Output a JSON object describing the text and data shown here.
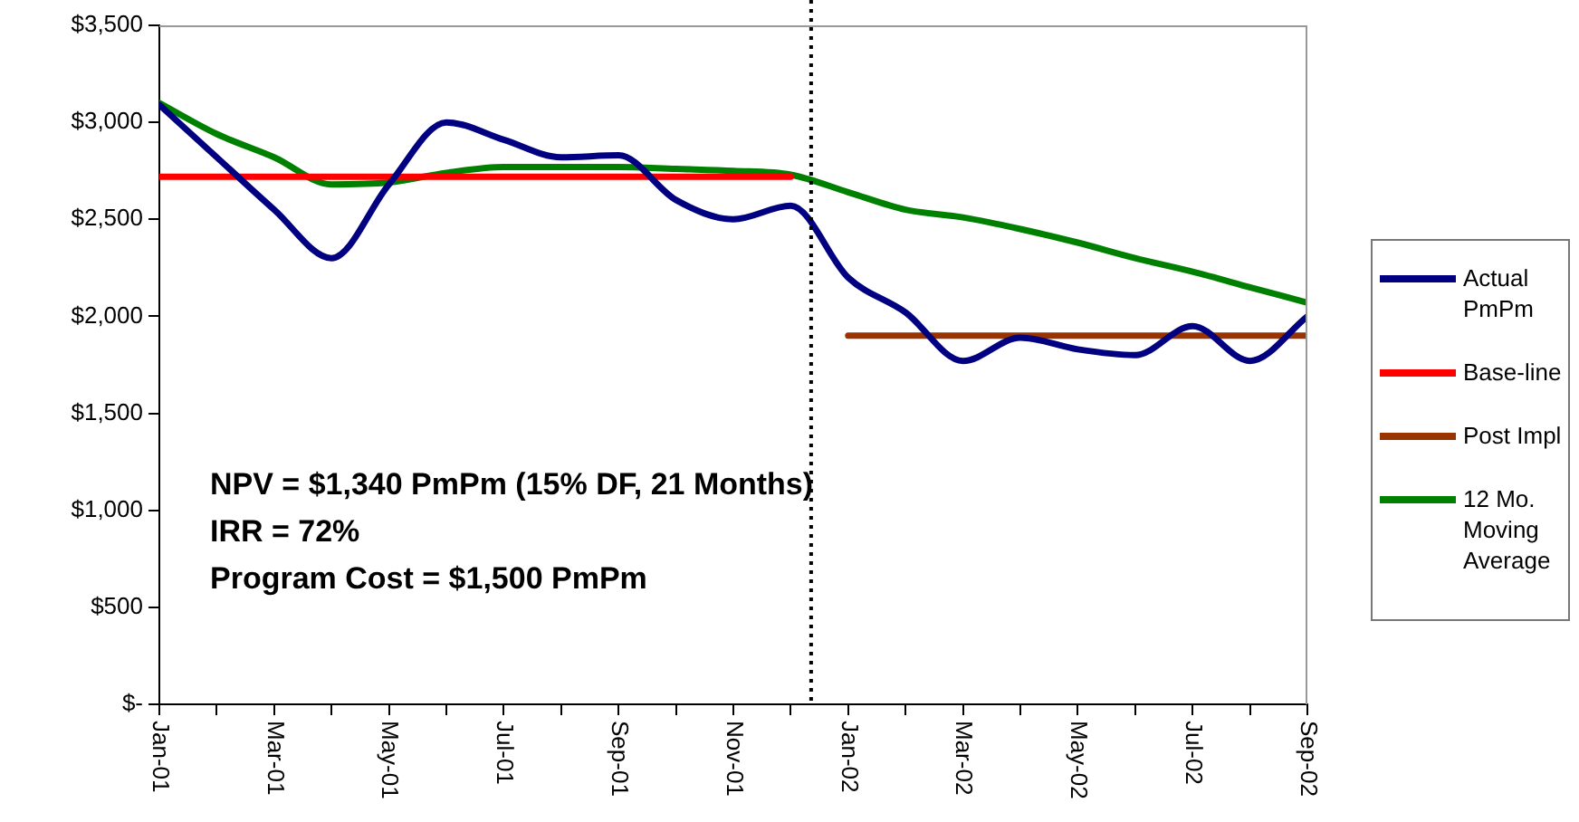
{
  "chart_data": {
    "type": "line",
    "x": [
      "2001-01",
      "2001-02",
      "2001-03",
      "2001-04",
      "2001-05",
      "2001-06",
      "2001-07",
      "2001-08",
      "2001-09",
      "2001-10",
      "2001-11",
      "2001-12",
      "2002-01",
      "2002-02",
      "2002-03",
      "2002-04",
      "2002-05",
      "2002-06",
      "2002-07",
      "2002-08",
      "2002-09"
    ],
    "series": [
      {
        "name": "Actual PmPm",
        "color": "#000080",
        "values": [
          3090,
          2820,
          2550,
          2300,
          2680,
          3000,
          2910,
          2820,
          2830,
          2600,
          2500,
          2570,
          2200,
          2020,
          1770,
          1890,
          1830,
          1800,
          1950,
          1770,
          2000
        ]
      },
      {
        "name": "Base-line",
        "color": "#ff0000",
        "values": [
          2720,
          2720,
          2720,
          2720,
          2720,
          2720,
          2720,
          2720,
          2720,
          2720,
          2720,
          2720,
          null,
          null,
          null,
          null,
          null,
          null,
          null,
          null,
          null
        ]
      },
      {
        "name": "Post Impl",
        "color": "#993300",
        "values": [
          null,
          null,
          null,
          null,
          null,
          null,
          null,
          null,
          null,
          null,
          null,
          null,
          1900,
          1900,
          1900,
          1900,
          1900,
          1900,
          1900,
          1900,
          1900
        ]
      },
      {
        "name": "12 Mo. Moving Average",
        "color": "#008000",
        "values": [
          3100,
          2940,
          2820,
          2680,
          2690,
          2740,
          2770,
          2770,
          2770,
          2760,
          2750,
          2730,
          2640,
          2550,
          2510,
          2450,
          2380,
          2300,
          2230,
          2150,
          2070
        ]
      }
    ],
    "xlim": [
      "2001-01",
      "2002-09"
    ],
    "xticks": [
      {
        "value": "2001-01",
        "label": "Jan-01"
      },
      {
        "value": "2001-02",
        "label": null
      },
      {
        "value": "2001-03",
        "label": "Mar-01"
      },
      {
        "value": "2001-04",
        "label": null
      },
      {
        "value": "2001-05",
        "label": "May-01"
      },
      {
        "value": "2001-06",
        "label": null
      },
      {
        "value": "2001-07",
        "label": "Jul-01"
      },
      {
        "value": "2001-08",
        "label": null
      },
      {
        "value": "2001-09",
        "label": "Sep-01"
      },
      {
        "value": "2001-10",
        "label": null
      },
      {
        "value": "2001-11",
        "label": "Nov-01"
      },
      {
        "value": "2001-12",
        "label": null
      },
      {
        "value": "2002-01",
        "label": "Jan-02"
      },
      {
        "value": "2002-02",
        "label": null
      },
      {
        "value": "2002-03",
        "label": "Mar-02"
      },
      {
        "value": "2002-04",
        "label": null
      },
      {
        "value": "2002-05",
        "label": "May-02"
      },
      {
        "value": "2002-06",
        "label": null
      },
      {
        "value": "2002-07",
        "label": "Jul-02"
      },
      {
        "value": "2002-08",
        "label": null
      },
      {
        "value": "2002-09",
        "label": "Sep-02"
      }
    ],
    "ylim": [
      0,
      3500
    ],
    "yticks": [
      {
        "value": 0,
        "label": "$-"
      },
      {
        "value": 500,
        "label": "$500"
      },
      {
        "value": 1000,
        "label": "$1,000"
      },
      {
        "value": 1500,
        "label": "$1,500"
      },
      {
        "value": 2000,
        "label": "$2,000"
      },
      {
        "value": 2500,
        "label": "$2,500"
      },
      {
        "value": 3000,
        "label": "$3,000"
      },
      {
        "value": 3500,
        "label": "$3,500"
      }
    ],
    "ref_lines": [
      {
        "axis": "x",
        "value": "2001-12-12",
        "color": "#000000",
        "line_style": "dotted"
      }
    ],
    "annotations": [
      "NPV = $1,340 PmPm (15% DF, 21 Months)",
      "IRR = 72%",
      "Program Cost = $1,500 PmPm"
    ],
    "grid": false,
    "legend": "right",
    "marker": "none",
    "line_style": "solid"
  }
}
